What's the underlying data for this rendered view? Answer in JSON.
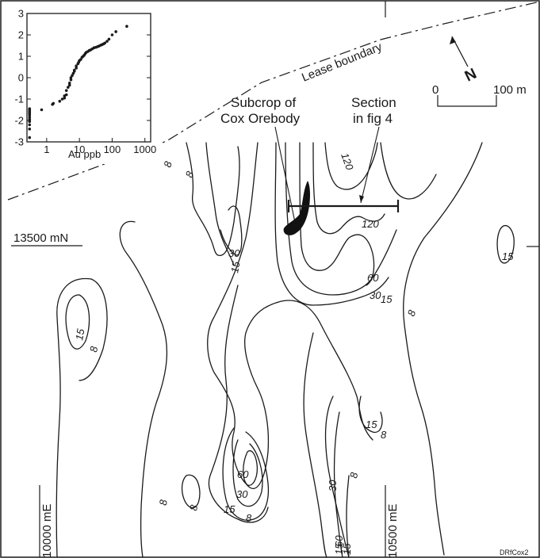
{
  "map": {
    "lease_boundary_label": "Lease boundary",
    "orebody_label_line1": "Subcrop of",
    "orebody_label_line2": "Cox Orebody",
    "section_label_line1": "Section",
    "section_label_line2": "in fig 4",
    "north_label": "N",
    "scale": {
      "start_label": "0",
      "end_label": "100 m"
    },
    "northing_label": "13500 mN",
    "easting_labels": [
      "10000 mE",
      "10500 mE"
    ],
    "credit": "DRfCox2",
    "contour_labels": [
      "8",
      "8",
      "8",
      "8",
      "8",
      "8",
      "8",
      "8",
      "8",
      "15",
      "15",
      "15",
      "15",
      "15",
      "15",
      "15",
      "15",
      "30",
      "30",
      "30",
      "30",
      "60",
      "60",
      "60",
      "120",
      "120"
    ]
  },
  "inset_plot": {
    "title": "",
    "xlabel": "Au ppb",
    "ylabel": "",
    "x_ticks": [
      "1",
      "10",
      "100",
      "1000"
    ],
    "y_ticks": [
      "3",
      "2",
      "1",
      "0",
      "-1",
      "-2",
      "-3"
    ]
  },
  "chart_data": {
    "type": "scatter",
    "xlabel": "Au ppb",
    "ylabel": "",
    "x_scale": "log",
    "xlim": [
      0.25,
      1500
    ],
    "ylim": [
      -3,
      3
    ],
    "x": [
      0.3,
      0.3,
      0.3,
      0.3,
      0.3,
      0.3,
      0.3,
      0.3,
      0.3,
      0.3,
      0.3,
      0.3,
      0.3,
      0.3,
      0.7,
      1.5,
      1.6,
      2.5,
      3,
      3.5,
      3.5,
      4,
      4,
      4.5,
      5,
      5,
      5.5,
      5.5,
      6,
      6.5,
      7,
      7,
      8,
      8,
      9,
      9.5,
      10,
      11,
      12,
      13,
      14,
      15,
      16,
      18,
      20,
      22,
      25,
      28,
      32,
      36,
      40,
      45,
      50,
      55,
      60,
      70,
      80,
      100,
      130,
      280
    ],
    "y": [
      -2.8,
      -2.4,
      -2.2,
      -2.05,
      -1.95,
      -1.85,
      -1.75,
      -1.7,
      -1.65,
      -1.6,
      -1.55,
      -1.5,
      -1.5,
      -1.45,
      -1.5,
      -1.25,
      -1.2,
      -1.1,
      -1.0,
      -0.95,
      -0.85,
      -0.8,
      -0.6,
      -0.45,
      -0.35,
      -0.25,
      -0.1,
      0.0,
      0.1,
      0.2,
      0.3,
      0.35,
      0.45,
      0.55,
      0.65,
      0.72,
      0.8,
      0.85,
      0.95,
      1.0,
      1.05,
      1.12,
      1.18,
      1.22,
      1.27,
      1.3,
      1.35,
      1.4,
      1.42,
      1.45,
      1.48,
      1.52,
      1.55,
      1.58,
      1.62,
      1.7,
      1.8,
      2.0,
      2.15,
      2.4
    ]
  }
}
